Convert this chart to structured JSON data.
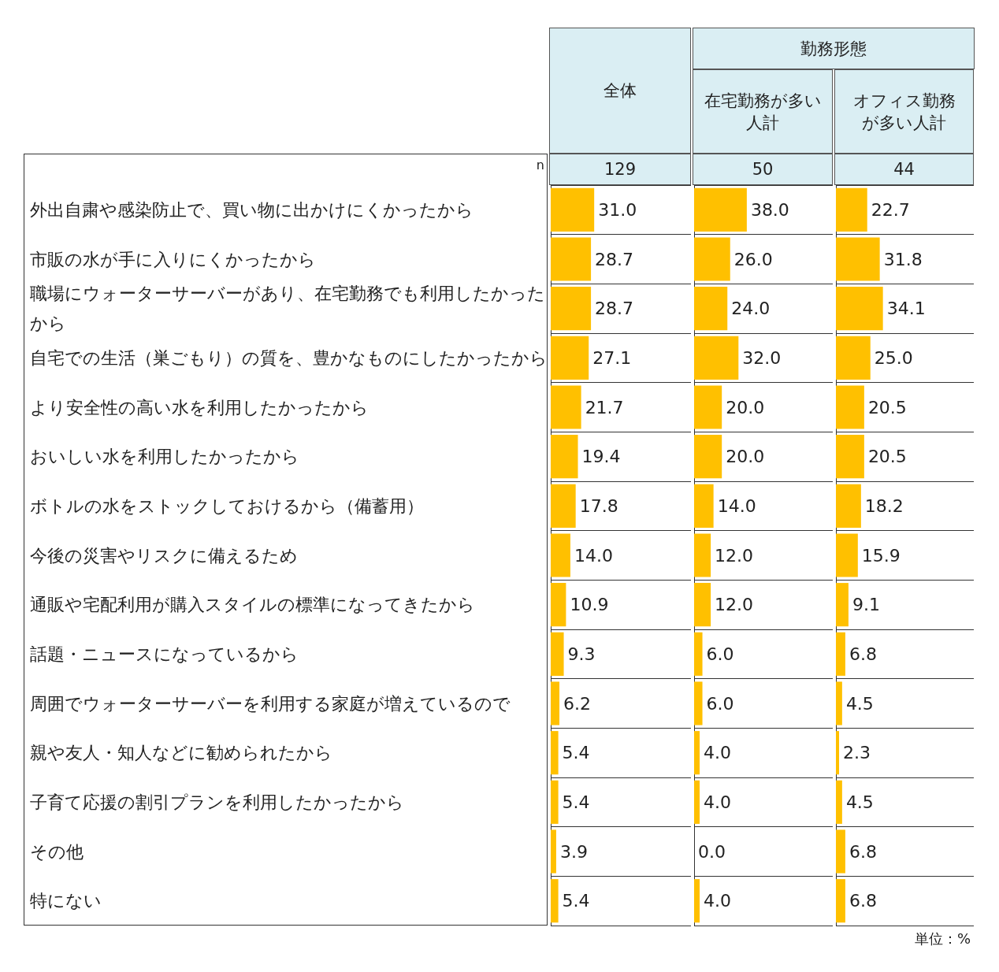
{
  "chart_data": [
    {
      "type": "bar",
      "orientation": "horizontal",
      "title": "全体",
      "subtitle": "129",
      "annotations": [
        "n"
      ],
      "categories": [
        "外出自粛や感染防止で、買い物に出かけにくかったから",
        "市販の水が手に入りにくかったから",
        "職場にウォーターサーバーがあり、在宅勤務でも利用したかったから",
        "自宅での生活（巣ごもり）の質を、豊かなものにしたかったから",
        "より安全性の高い水を利用したかったから",
        "おいしい水を利用したかったから",
        "ボトルの水をストックしておけるから（備蓄用）",
        "今後の災害やリスクに備えるため",
        "通販や宅配利用が購入スタイルの標準になってきたから",
        "話題・ニュースになっているから",
        "周囲でウォーターサーバーを利用する家庭が増えているので",
        "親や友人・知人などに勧められたから",
        "子育て応援の割引プランを利用したかったから",
        "その他",
        "特にない"
      ],
      "values": [
        31.0,
        28.7,
        28.7,
        27.1,
        21.7,
        19.4,
        17.8,
        14.0,
        10.9,
        9.3,
        6.2,
        5.4,
        5.4,
        3.9,
        5.4
      ],
      "value_labels": [
        "31.0",
        "28.7",
        "28.7",
        "27.1",
        "21.7",
        "19.4",
        "17.8",
        "14.0",
        "10.9",
        "9.3",
        "6.2",
        "5.4",
        "5.4",
        "3.9",
        "5.4"
      ],
      "color": "#ffc000",
      "xlim": [
        0,
        100
      ],
      "tick_labels": "y",
      "grid": "y"
    },
    {
      "type": "bar",
      "orientation": "horizontal",
      "title": "在宅勤務が多い人計",
      "subtitle": "50",
      "annotations": [
        "勤務形態"
      ],
      "categories": [
        "外出自粛や感染防止で、買い物に出かけにくかったから",
        "市販の水が手に入りにくかったから",
        "職場にウォーターサーバーがあり、在宅勤務でも利用したかったから",
        "自宅での生活（巣ごもり）の質を、豊かなものにしたかったから",
        "より安全性の高い水を利用したかったから",
        "おいしい水を利用したかったから",
        "ボトルの水をストックしておけるから（備蓄用）",
        "今後の災害やリスクに備えるため",
        "通販や宅配利用が購入スタイルの標準になってきたから",
        "話題・ニュースになっているから",
        "周囲でウォーターサーバーを利用する家庭が増えているので",
        "親や友人・知人などに勧められたから",
        "子育て応援の割引プランを利用したかったから",
        "その他",
        "特にない"
      ],
      "values": [
        38.0,
        26.0,
        24.0,
        32.0,
        20.0,
        20.0,
        14.0,
        12.0,
        12.0,
        6.0,
        6.0,
        4.0,
        4.0,
        0.0,
        4.0
      ],
      "value_labels": [
        "38.0",
        "26.0",
        "24.0",
        "32.0",
        "20.0",
        "20.0",
        "14.0",
        "12.0",
        "12.0",
        "6.0",
        "6.0",
        "4.0",
        "4.0",
        "0.0",
        "4.0"
      ],
      "color": "#ffc000",
      "xlim": [
        0,
        100
      ],
      "tick_labels": false,
      "grid": "y"
    },
    {
      "type": "bar",
      "orientation": "horizontal",
      "title": "オフィス勤務が多い人計",
      "subtitle": "44",
      "annotations": [
        "単位：%"
      ],
      "categories": [
        "外出自粛や感染防止で、買い物に出かけにくかったから",
        "市販の水が手に入りにくかったから",
        "職場にウォーターサーバーがあり、在宅勤務でも利用したかったから",
        "自宅での生活（巣ごもり）の質を、豊かなものにしたかったから",
        "より安全性の高い水を利用したかったから",
        "おいしい水を利用したかったから",
        "ボトルの水をストックしておけるから（備蓄用）",
        "今後の災害やリスクに備えるため",
        "通販や宅配利用が購入スタイルの標準になってきたから",
        "話題・ニュースになっているから",
        "周囲でウォーターサーバーを利用する家庭が増えているので",
        "親や友人・知人などに勧められたから",
        "子育て応援の割引プランを利用したかったから",
        "その他",
        "特にない"
      ],
      "values": [
        22.7,
        31.8,
        34.1,
        25.0,
        20.5,
        20.5,
        18.2,
        15.9,
        9.1,
        6.8,
        4.5,
        2.3,
        4.5,
        6.8,
        6.8
      ],
      "value_labels": [
        "22.7",
        "31.8",
        "34.1",
        "25.0",
        "20.5",
        "20.5",
        "18.2",
        "15.9",
        "9.1",
        "6.8",
        "4.5",
        "2.3",
        "4.5",
        "6.8",
        "6.8"
      ],
      "color": "#ffc000",
      "xlim": [
        0,
        100
      ],
      "tick_labels": false,
      "grid": "y"
    }
  ]
}
